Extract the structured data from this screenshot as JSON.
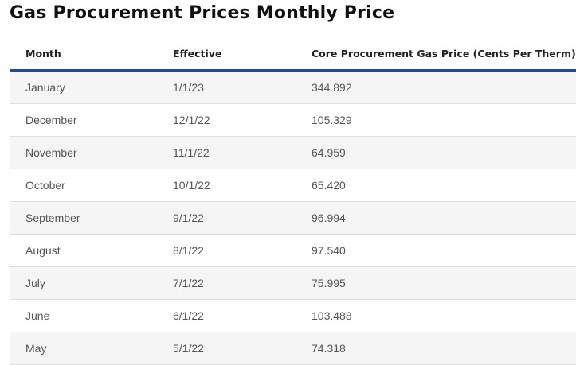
{
  "header": {
    "title": "Gas Procurement Prices Monthly Price"
  },
  "table": {
    "columns": [
      "Month",
      "Effective",
      "Core Procurement Gas Price (Cents Per Therm)"
    ],
    "rows": [
      [
        "January",
        "1/1/23",
        "344.892"
      ],
      [
        "December",
        "12/1/22",
        "105.329"
      ],
      [
        "November",
        "11/1/22",
        "64.959"
      ],
      [
        "October",
        "10/1/22",
        "65.420"
      ],
      [
        "September",
        "9/1/22",
        "96.994"
      ],
      [
        "August",
        "8/1/22",
        "97.540"
      ],
      [
        "July",
        "7/1/22",
        "75.995"
      ],
      [
        "June",
        "6/1/22",
        "103.488"
      ],
      [
        "May",
        "5/1/22",
        "74.318"
      ]
    ]
  }
}
